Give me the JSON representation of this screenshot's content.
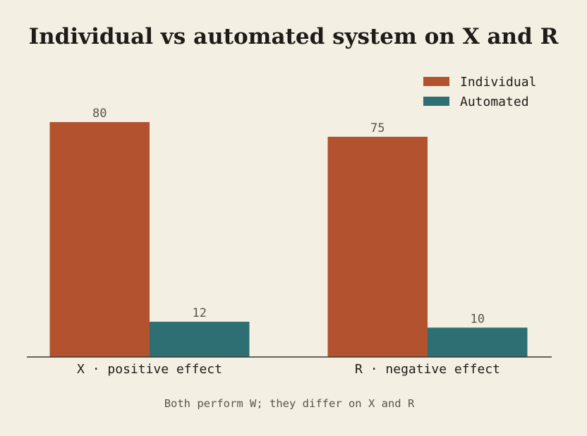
{
  "chart_data": {
    "type": "bar",
    "title": "Individual vs automated system on X and R",
    "caption": "Both perform W; they differ on X and R",
    "categories": [
      "X · positive effect",
      "R · negative effect"
    ],
    "series": [
      {
        "name": "Individual",
        "values": [
          80,
          75
        ],
        "color": "#b3522e"
      },
      {
        "name": "Automated",
        "values": [
          12,
          10
        ],
        "color": "#2e6f73"
      }
    ],
    "ylim": [
      0,
      100
    ],
    "grid": false,
    "legend_position": "top-right",
    "background_color": "#f3efe3",
    "axis_color": "#3a362f"
  }
}
